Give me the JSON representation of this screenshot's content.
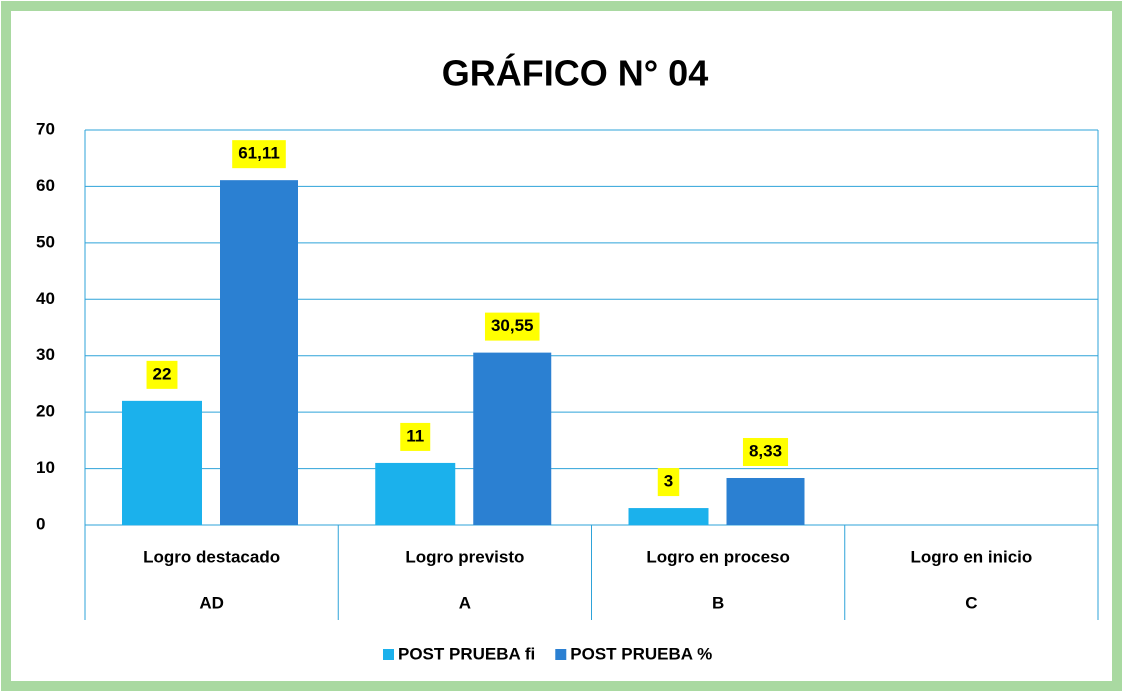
{
  "chart_data": {
    "type": "bar",
    "title": "GRÁFICO N° 04",
    "categories": [
      "Logro destacado",
      "Logro previsto",
      "Logro en proceso",
      "Logro en inicio"
    ],
    "category_codes": [
      "AD",
      "A",
      "B",
      "C"
    ],
    "series": [
      {
        "name": "POST PRUEBA fi",
        "color": "#1bb1ec",
        "values": [
          22,
          11,
          3,
          null
        ]
      },
      {
        "name": "POST PRUEBA %",
        "color": "#2b80d2",
        "values": [
          61.11,
          30.55,
          8.33,
          null
        ],
        "value_labels": [
          "61,11",
          "30,55",
          "8,33",
          null
        ]
      }
    ],
    "ylim": [
      0,
      70
    ],
    "yticks": [
      0,
      10,
      20,
      30,
      40,
      50,
      60,
      70
    ],
    "grid": true,
    "legend": "bottom"
  }
}
